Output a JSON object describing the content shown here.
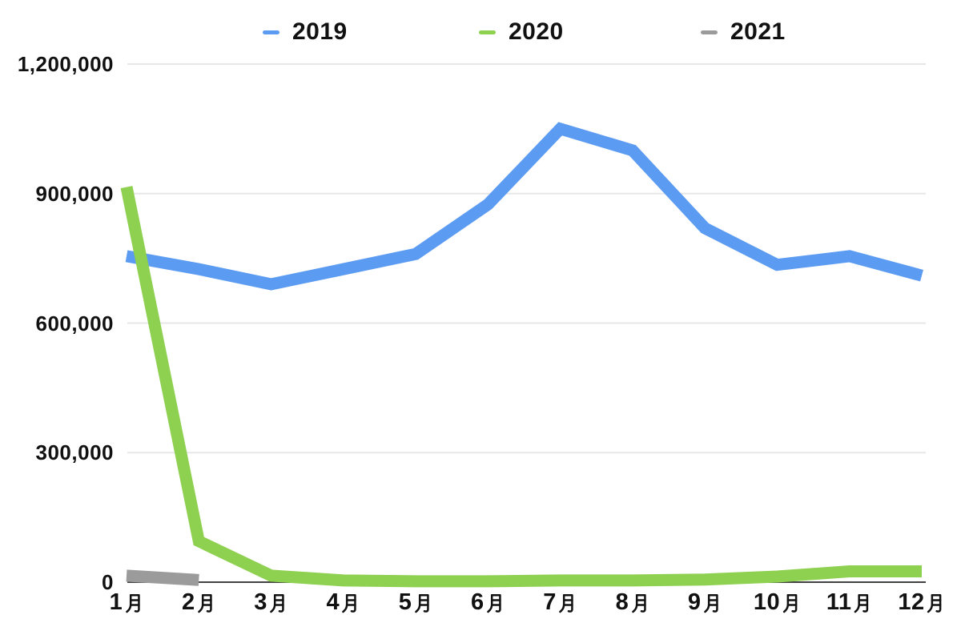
{
  "chart_data": {
    "type": "line",
    "title": "",
    "categories": [
      "1月",
      "2月",
      "3月",
      "4月",
      "5月",
      "6月",
      "7月",
      "8月",
      "9月",
      "10月",
      "11月",
      "12月"
    ],
    "series": [
      {
        "name": "2019",
        "color": "#5c9bf2",
        "values": [
          755000,
          725000,
          690000,
          725000,
          760000,
          875000,
          1050000,
          1000000,
          820000,
          735000,
          755000,
          710000
        ]
      },
      {
        "name": "2020",
        "color": "#8ed04f",
        "values": [
          915000,
          95000,
          15000,
          4000,
          2000,
          2000,
          4000,
          4000,
          6000,
          13000,
          25000,
          25000
        ]
      },
      {
        "name": "2021",
        "color": "#9b9b9b",
        "values": [
          15000,
          5000,
          null,
          null,
          null,
          null,
          null,
          null,
          null,
          null,
          null,
          null
        ]
      }
    ],
    "ylim": [
      0,
      1200000
    ],
    "yticks": [
      {
        "value": 0,
        "label": "0"
      },
      {
        "value": 300000,
        "label": "300,000"
      },
      {
        "value": 600000,
        "label": "600,000"
      },
      {
        "value": 900000,
        "label": "900,000"
      },
      {
        "value": 1200000,
        "label": "1,200,000"
      }
    ],
    "legend_position": "top",
    "grid": "horizontal",
    "line_width": 15,
    "colors": {
      "background": "#ffffff",
      "gridline": "#e7e7e7",
      "axis": "#424242",
      "text": "#111111"
    }
  }
}
